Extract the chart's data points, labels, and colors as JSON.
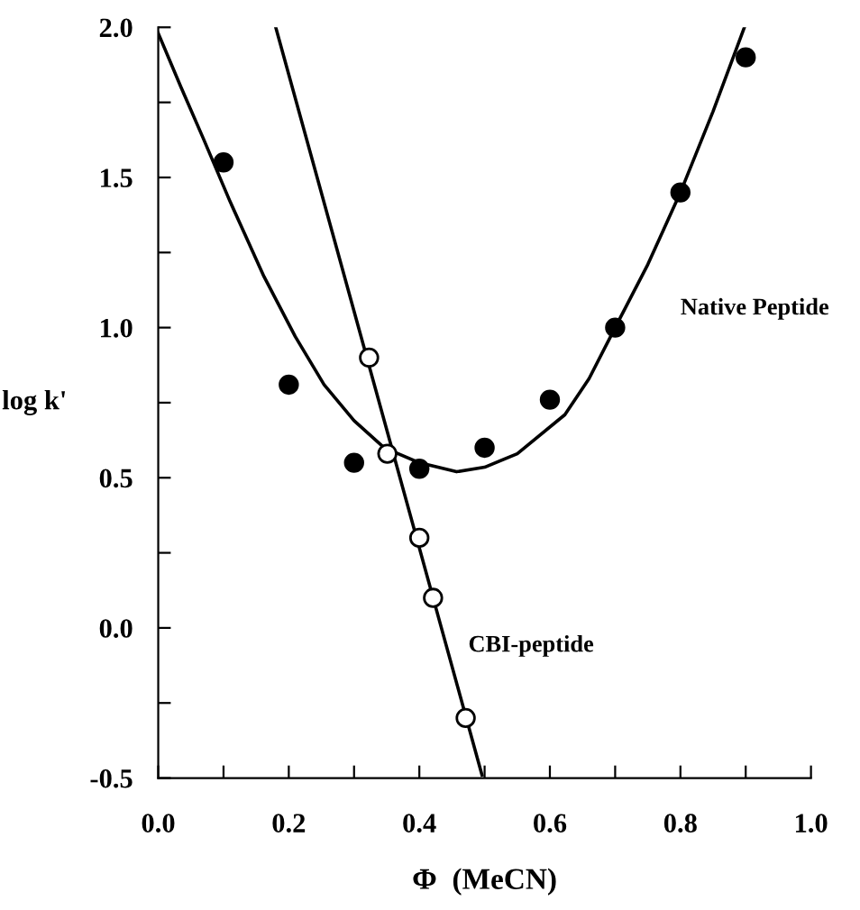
{
  "chart_data": {
    "type": "scatter",
    "xlabel": "Φ  (MeCN)",
    "ylabel": "log k'",
    "xlim": [
      0.0,
      1.0
    ],
    "ylim": [
      -0.5,
      2.0
    ],
    "xticks": [
      {
        "value": 0.0,
        "label": "0.0"
      },
      {
        "value": 0.1,
        "label": null
      },
      {
        "value": 0.2,
        "label": "0.2"
      },
      {
        "value": 0.3,
        "label": null
      },
      {
        "value": 0.4,
        "label": "0.4"
      },
      {
        "value": 0.5,
        "label": null
      },
      {
        "value": 0.6,
        "label": "0.6"
      },
      {
        "value": 0.7,
        "label": null
      },
      {
        "value": 0.8,
        "label": "0.8"
      },
      {
        "value": 0.9,
        "label": null
      },
      {
        "value": 1.0,
        "label": "1.0"
      }
    ],
    "yticks": [
      {
        "value": -0.5,
        "label": "-0.5"
      },
      {
        "value": -0.25,
        "label": null
      },
      {
        "value": 0.0,
        "label": "0.0"
      },
      {
        "value": 0.25,
        "label": null
      },
      {
        "value": 0.5,
        "label": "0.5"
      },
      {
        "value": 0.75,
        "label": null
      },
      {
        "value": 1.0,
        "label": "1.0"
      },
      {
        "value": 1.25,
        "label": null
      },
      {
        "value": 1.5,
        "label": "1.5"
      },
      {
        "value": 1.75,
        "label": null
      },
      {
        "value": 2.0,
        "label": "2.0"
      }
    ],
    "grid": false,
    "legend": false,
    "series": [
      {
        "marker": "circle",
        "color": "#000000",
        "x": [
          0.1,
          0.2,
          0.3,
          0.4,
          0.5,
          0.6,
          0.7,
          0.8,
          0.9
        ],
        "values": [
          1.55,
          0.81,
          0.55,
          0.53,
          0.6,
          0.76,
          1.0,
          1.45,
          1.9
        ]
      },
      {
        "marker": "circle",
        "color": "#ffffff",
        "x": [
          0.323,
          0.351,
          0.4,
          0.421,
          0.471
        ],
        "values": [
          0.9,
          0.58,
          0.3,
          0.1,
          -0.3
        ]
      },
      {
        "type": "line",
        "marker": "none",
        "color": "#000000",
        "x": [
          0.0,
          0.035,
          0.069,
          0.11,
          0.162,
          0.21,
          0.254,
          0.3,
          0.346,
          0.4,
          0.457,
          0.5,
          0.55,
          0.623,
          0.66,
          0.7,
          0.75,
          0.8,
          0.85,
          0.898
        ],
        "values": [
          1.98,
          1.8,
          1.63,
          1.42,
          1.17,
          0.97,
          0.81,
          0.69,
          0.6,
          0.55,
          0.52,
          0.535,
          0.58,
          0.71,
          0.83,
          1.0,
          1.21,
          1.45,
          1.72,
          2.0
        ]
      },
      {
        "type": "line",
        "marker": "none",
        "color": "#000000",
        "x": [
          0.18,
          0.496
        ],
        "values": [
          2.0,
          -0.49
        ]
      }
    ],
    "annotations": [
      "Native Peptide",
      "CBI-peptide"
    ]
  }
}
